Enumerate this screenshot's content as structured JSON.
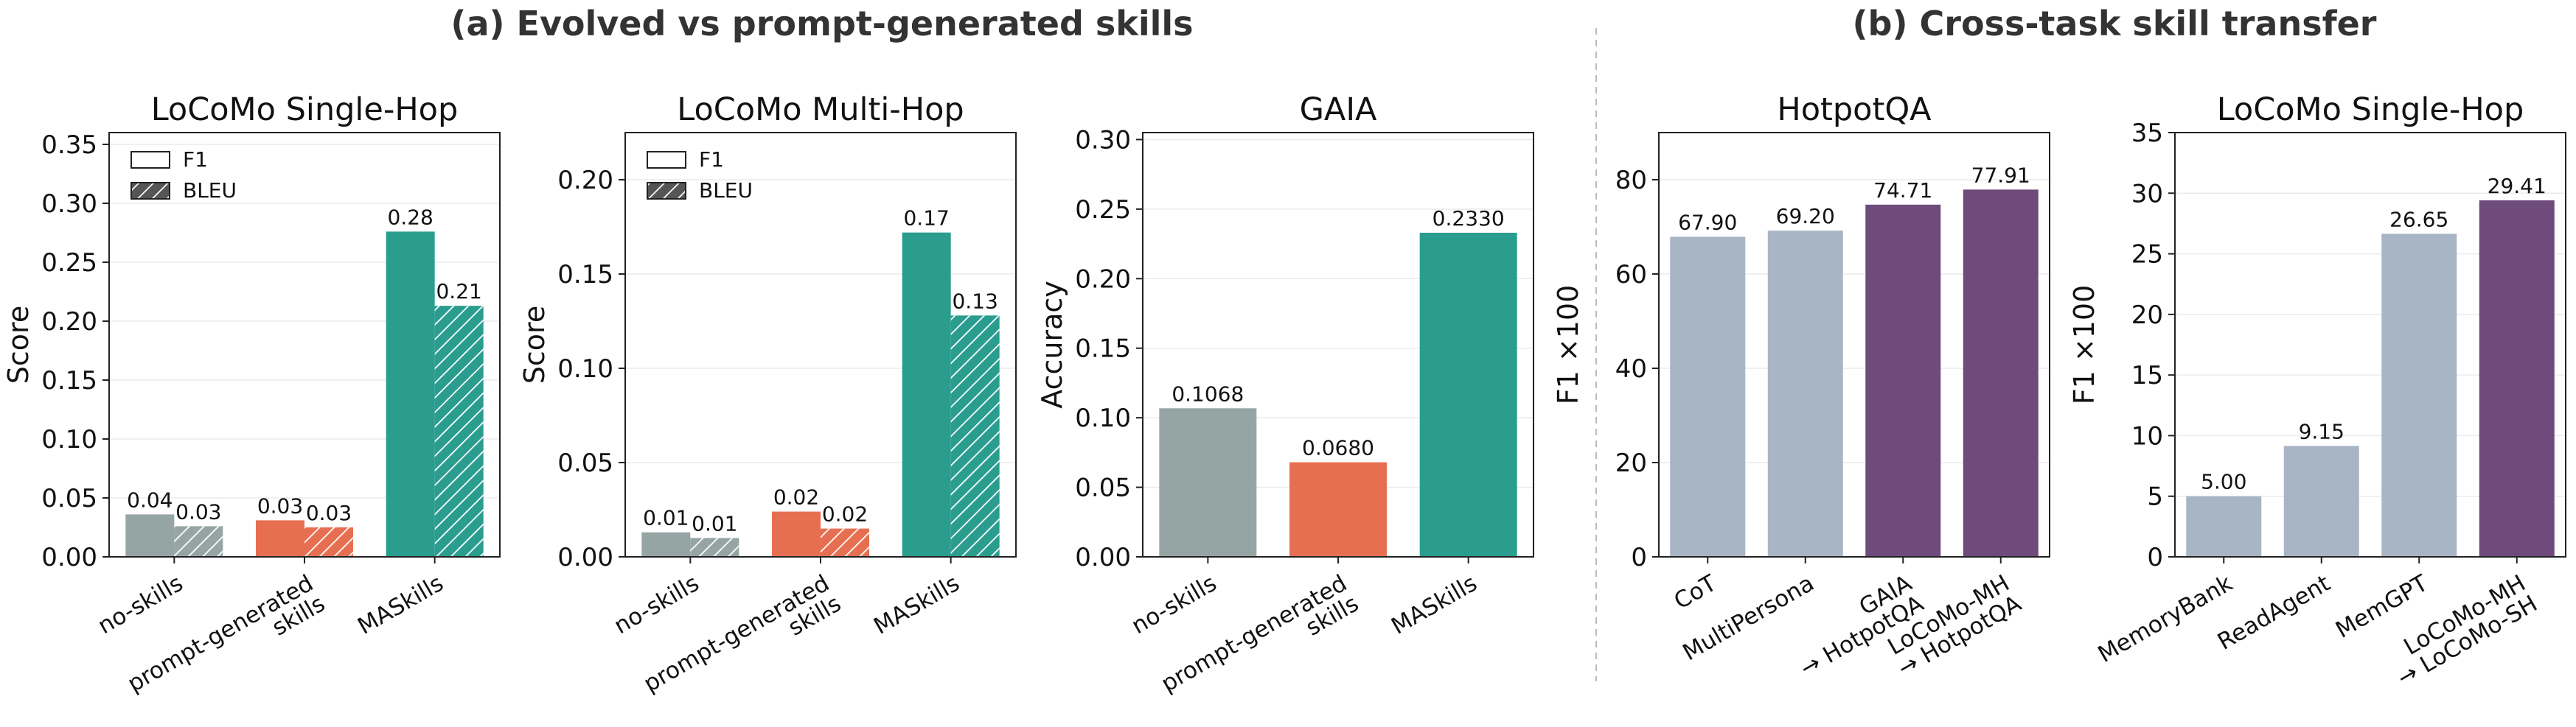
{
  "figure": {
    "section_a_title": "(a) Evolved vs prompt-generated skills",
    "section_b_title": "(b) Cross-task skill transfer"
  },
  "colors": {
    "no_skills": "#95a5a4",
    "prompt_generated": "#e76f51",
    "maskills": "#2a9d8f",
    "baseline": "#a8b5c4",
    "transfer": "#6e4b7a"
  },
  "chart_data": [
    {
      "type": "bar",
      "title": "LoCoMo Single-Hop",
      "ylabel": "Score",
      "xlabel": "",
      "ylim": [
        0,
        0.36
      ],
      "yticks": [
        "0.00",
        "0.05",
        "0.10",
        "0.15",
        "0.20",
        "0.25",
        "0.30",
        "0.35"
      ],
      "grid": true,
      "legend": {
        "position": "upper-left",
        "entries": [
          "F1",
          "BLEU"
        ]
      },
      "categories": [
        "no-skills",
        "prompt-generated\nskills",
        "MASkills"
      ],
      "category_colors": [
        "no_skills",
        "prompt_generated",
        "maskills"
      ],
      "series": [
        {
          "name": "F1",
          "hatch": false,
          "values": [
            0.036,
            0.031,
            0.276
          ],
          "labels": [
            "0.04",
            "0.03",
            "0.28"
          ]
        },
        {
          "name": "BLEU",
          "hatch": true,
          "values": [
            0.026,
            0.025,
            0.213
          ],
          "labels": [
            "0.03",
            "0.03",
            "0.21"
          ]
        }
      ]
    },
    {
      "type": "bar",
      "title": "LoCoMo Multi-Hop",
      "ylabel": "Score",
      "xlabel": "",
      "ylim": [
        0,
        0.225
      ],
      "yticks": [
        "0.00",
        "0.05",
        "0.10",
        "0.15",
        "0.20"
      ],
      "grid": true,
      "legend": {
        "position": "upper-left",
        "entries": [
          "F1",
          "BLEU"
        ]
      },
      "categories": [
        "no-skills",
        "prompt-generated\nskills",
        "MASkills"
      ],
      "category_colors": [
        "no_skills",
        "prompt_generated",
        "maskills"
      ],
      "series": [
        {
          "name": "F1",
          "hatch": false,
          "values": [
            0.013,
            0.024,
            0.172
          ],
          "labels": [
            "0.01",
            "0.02",
            "0.17"
          ]
        },
        {
          "name": "BLEU",
          "hatch": true,
          "values": [
            0.01,
            0.015,
            0.128
          ],
          "labels": [
            "0.01",
            "0.02",
            "0.13"
          ]
        }
      ]
    },
    {
      "type": "bar",
      "title": "GAIA",
      "ylabel": "Accuracy",
      "xlabel": "",
      "ylim": [
        0,
        0.305
      ],
      "yticks": [
        "0.00",
        "0.05",
        "0.10",
        "0.15",
        "0.20",
        "0.25",
        "0.30"
      ],
      "grid": true,
      "categories": [
        "no-skills",
        "prompt-generated\nskills",
        "MASkills"
      ],
      "category_colors": [
        "no_skills",
        "prompt_generated",
        "maskills"
      ],
      "series": [
        {
          "name": "",
          "hatch": false,
          "values": [
            0.1068,
            0.068,
            0.233
          ],
          "labels": [
            "0.1068",
            "0.0680",
            "0.2330"
          ]
        }
      ]
    },
    {
      "type": "bar",
      "title": "HotpotQA",
      "ylabel": "F1 ×100",
      "xlabel": "",
      "ylim": [
        0,
        90
      ],
      "yticks": [
        "0",
        "20",
        "40",
        "60",
        "80"
      ],
      "grid": true,
      "categories": [
        "CoT",
        "MultiPersona",
        "GAIA\n→ HotpotQA",
        "LoCoMo-MH\n→ HotpotQA"
      ],
      "category_colors": [
        "baseline",
        "baseline",
        "transfer",
        "transfer"
      ],
      "series": [
        {
          "name": "",
          "hatch": false,
          "values": [
            67.9,
            69.2,
            74.71,
            77.91
          ],
          "labels": [
            "67.90",
            "69.20",
            "74.71",
            "77.91"
          ]
        }
      ]
    },
    {
      "type": "bar",
      "title": "LoCoMo Single-Hop",
      "ylabel": "F1 ×100",
      "xlabel": "",
      "ylim": [
        0,
        35
      ],
      "yticks": [
        "0",
        "5",
        "10",
        "15",
        "20",
        "25",
        "30",
        "35"
      ],
      "grid": true,
      "categories": [
        "MemoryBank",
        "ReadAgent",
        "MemGPT",
        "LoCoMo-MH\n→ LoCoMo-SH"
      ],
      "category_colors": [
        "baseline",
        "baseline",
        "baseline",
        "transfer"
      ],
      "series": [
        {
          "name": "",
          "hatch": false,
          "values": [
            5.0,
            9.15,
            26.65,
            29.41
          ],
          "labels": [
            "5.00",
            "9.15",
            "26.65",
            "29.41"
          ]
        }
      ]
    }
  ]
}
